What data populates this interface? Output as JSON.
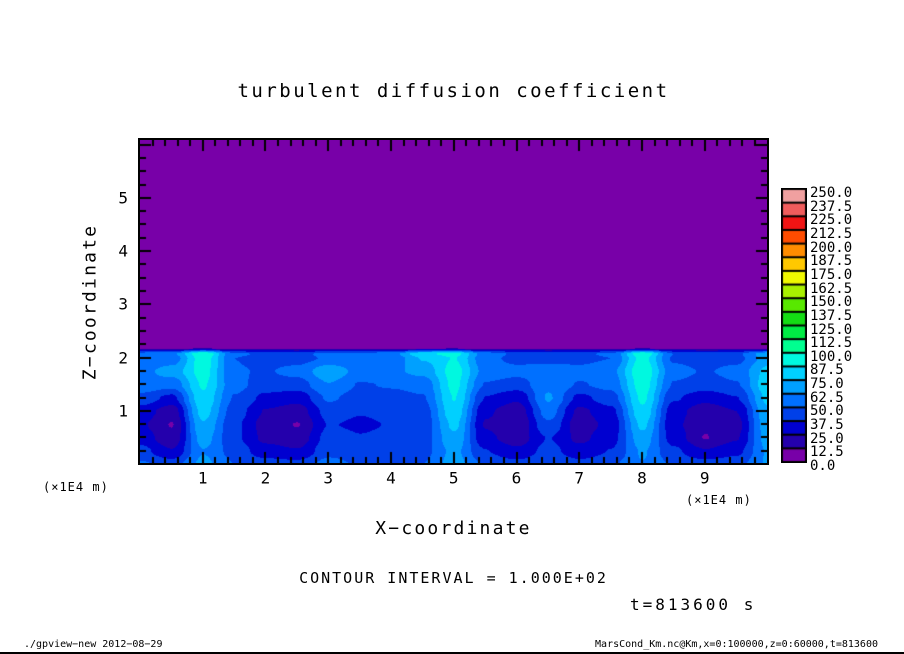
{
  "title": "turbulent diffusion coefficient",
  "axes": {
    "x": {
      "label": "X−coordinate",
      "unit_left": "(×1E4 m)",
      "unit_right": "(×1E4 m)",
      "tick_labels": [
        "1",
        "2",
        "3",
        "4",
        "5",
        "6",
        "7",
        "8",
        "9"
      ],
      "tick_values": [
        1,
        2,
        3,
        4,
        5,
        6,
        7,
        8,
        9
      ],
      "minor_step": 0.2,
      "range": [
        0,
        10
      ]
    },
    "z": {
      "label": "Z−coordinate",
      "tick_labels": [
        "5",
        "4",
        "3",
        "2",
        "1"
      ],
      "tick_values": [
        5,
        4,
        3,
        2,
        1
      ],
      "minor_step": 0.25,
      "range": [
        0,
        6.07
      ]
    }
  },
  "colorbar": {
    "labels_top_to_bottom": [
      "250.0",
      "237.5",
      "225.0",
      "212.5",
      "200.0",
      "187.5",
      "175.0",
      "162.5",
      "150.0",
      "137.5",
      "125.0",
      "112.5",
      "100.0",
      "87.5",
      "75.0",
      "62.5",
      "50.0",
      "37.5",
      "25.0",
      "12.5",
      "0.0"
    ],
    "colors_bottom_up": [
      "#7800a8",
      "#2400ac",
      "#0000d0",
      "#0040e8",
      "#0070ff",
      "#00a0ff",
      "#00d0ff",
      "#00f8e0",
      "#00ff90",
      "#00ec44",
      "#14dc14",
      "#58e800",
      "#a8f000",
      "#f0f800",
      "#ffc800",
      "#ff8c00",
      "#ff4c00",
      "#f01414",
      "#f05c5c",
      "#f0a0a0"
    ]
  },
  "annotations": {
    "contour_interval": "CONTOUR INTERVAL = 1.000E+02",
    "time": "t=813600 s"
  },
  "footer": {
    "left": "./gpview−new  2012−08−29",
    "right": "MarsCond_Km.nc@Km,x=0:100000,z=0:60000,t=813600"
  },
  "chart_data": {
    "type": "heatmap",
    "subtype": "filled_contour",
    "title": "turbulent diffusion coefficient",
    "xlabel": "X−coordinate (×1E4 m)",
    "ylabel": "Z−coordinate (×1E4 m)",
    "x_range": [
      0,
      10
    ],
    "z_range": [
      0,
      6.07
    ],
    "contour_levels_min": 0.0,
    "contour_levels_max": 250.0,
    "contour_levels_step": 12.5,
    "contour_interval": 100.0,
    "time_seconds": 813600,
    "description": "Solid purple (lowest bin 0-12.5) above z≈2.1; turbulent boundary layer below with blue background, bright cyan plumes near x≈1, 5, 8 and right edge, and dark indigo/purple low-value blobs near x≈0.5, 2.5, 6, 7, 9",
    "field": {
      "order": "values[zi][xi], z rows bottom_to_top",
      "xs": [
        0,
        0.5,
        1,
        1.5,
        2,
        2.5,
        3,
        3.5,
        4,
        4.5,
        5,
        5.5,
        6,
        6.5,
        7,
        7.5,
        8,
        8.5,
        9,
        9.5,
        10
      ],
      "zs": [
        0,
        0.25,
        0.5,
        0.75,
        1.0,
        1.25,
        1.5,
        1.75,
        2.0,
        2.08,
        2.2,
        2.5
      ],
      "values": [
        [
          52,
          45,
          66,
          50,
          44,
          42,
          55,
          48,
          48,
          50,
          68,
          48,
          42,
          50,
          42,
          48,
          62,
          48,
          44,
          46,
          64
        ],
        [
          42,
          26,
          62,
          45,
          30,
          26,
          46,
          42,
          44,
          46,
          66,
          38,
          28,
          42,
          30,
          38,
          64,
          40,
          26,
          34,
          64
        ],
        [
          32,
          16,
          68,
          40,
          22,
          17,
          42,
          38,
          40,
          44,
          72,
          28,
          18,
          38,
          22,
          33,
          70,
          32,
          12,
          24,
          68
        ],
        [
          27,
          12,
          74,
          40,
          20,
          12,
          38,
          36,
          38,
          42,
          78,
          24,
          13,
          48,
          18,
          29,
          78,
          28,
          14,
          21,
          70
        ],
        [
          32,
          18,
          80,
          44,
          24,
          19,
          42,
          38,
          40,
          44,
          84,
          27,
          17,
          56,
          22,
          34,
          85,
          30,
          17,
          25,
          73
        ],
        [
          45,
          34,
          85,
          49,
          34,
          29,
          52,
          44,
          46,
          49,
          88,
          37,
          27,
          64,
          34,
          44,
          90,
          39,
          29,
          37,
          78
        ],
        [
          60,
          54,
          89,
          54,
          44,
          44,
          62,
          49,
          51,
          54,
          91,
          49,
          44,
          60,
          49,
          54,
          94,
          49,
          44,
          49,
          83
        ],
        [
          58,
          68,
          93,
          51,
          49,
          54,
          72,
          58,
          60,
          66,
          93,
          58,
          54,
          56,
          54,
          59,
          98,
          54,
          49,
          54,
          79
        ],
        [
          50,
          55,
          95,
          50,
          46,
          45,
          52,
          50,
          54,
          76,
          88,
          54,
          46,
          46,
          46,
          50,
          92,
          48,
          44,
          46,
          68
        ],
        [
          55,
          60,
          100,
          52,
          48,
          46,
          54,
          52,
          58,
          85,
          92,
          56,
          48,
          46,
          48,
          52,
          98,
          50,
          45,
          48,
          70
        ],
        [
          6,
          6,
          6,
          6,
          6,
          6,
          6,
          6,
          6,
          6,
          6,
          6,
          6,
          6,
          6,
          6,
          6,
          6,
          6,
          6,
          6
        ],
        [
          6,
          6,
          6,
          6,
          6,
          6,
          6,
          6,
          6,
          6,
          6,
          6,
          6,
          6,
          6,
          6,
          6,
          6,
          6,
          6,
          6
        ]
      ]
    }
  }
}
